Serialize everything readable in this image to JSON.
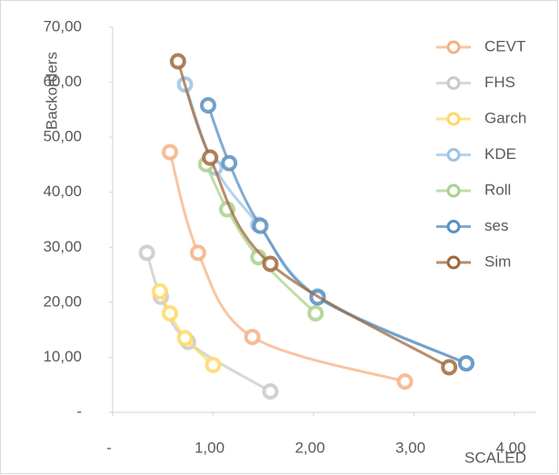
{
  "chart_data": {
    "type": "scatter-smooth",
    "x_label": "SCALED",
    "y_label": "Backorders",
    "xlim": [
      0,
      4
    ],
    "ylim": [
      0,
      70
    ],
    "xticks": [
      {
        "value": 0,
        "label": "-"
      },
      {
        "value": 1,
        "label": "1,00"
      },
      {
        "value": 2,
        "label": "2,00"
      },
      {
        "value": 3,
        "label": "3,00"
      },
      {
        "value": 4,
        "label": "4,00"
      }
    ],
    "yticks": [
      {
        "value": 0,
        "label": "-"
      },
      {
        "value": 10,
        "label": "10,00"
      },
      {
        "value": 20,
        "label": "20,00"
      },
      {
        "value": 30,
        "label": "30,00"
      },
      {
        "value": 40,
        "label": "40,00"
      },
      {
        "value": 50,
        "label": "50,00"
      },
      {
        "value": 60,
        "label": "60,00"
      },
      {
        "value": 70,
        "label": "70,00"
      }
    ],
    "legend": "right",
    "series": [
      {
        "name": "CEVT",
        "color": "#f4b183",
        "x": [
          0.57,
          0.85,
          1.39,
          2.91
        ],
        "values": [
          47.3,
          29,
          13.7,
          5.6
        ]
      },
      {
        "name": "FHS",
        "color": "#c9c9c9",
        "x": [
          0.34,
          0.48,
          0.75,
          1.57
        ],
        "values": [
          29,
          21,
          12.8,
          3.8
        ]
      },
      {
        "name": "Garch",
        "color": "#ffd966",
        "x": [
          0.47,
          0.57,
          0.72,
          1.0
        ],
        "values": [
          22,
          18,
          13.5,
          8.6
        ]
      },
      {
        "name": "KDE",
        "color": "#9dc3e6",
        "x": [
          0.72,
          1.02,
          1.45,
          2.04,
          3.52
        ],
        "values": [
          59.6,
          44.5,
          34.1,
          21.1,
          8.9
        ]
      },
      {
        "name": "Roll",
        "color": "#a9d18e",
        "x": [
          0.93,
          1.14,
          1.45,
          2.02
        ],
        "values": [
          45.1,
          36.9,
          28.2,
          18
        ]
      },
      {
        "name": "ses",
        "color": "#5a8fc0",
        "x": [
          0.95,
          1.16,
          1.47,
          2.04,
          3.52
        ],
        "values": [
          55.8,
          45.3,
          33.9,
          20.9,
          8.9
        ]
      },
      {
        "name": "Sim",
        "color": "#a0683a",
        "x": [
          0.65,
          0.97,
          1.57,
          3.35
        ],
        "values": [
          63.8,
          46.3,
          27,
          8.2
        ]
      }
    ]
  }
}
